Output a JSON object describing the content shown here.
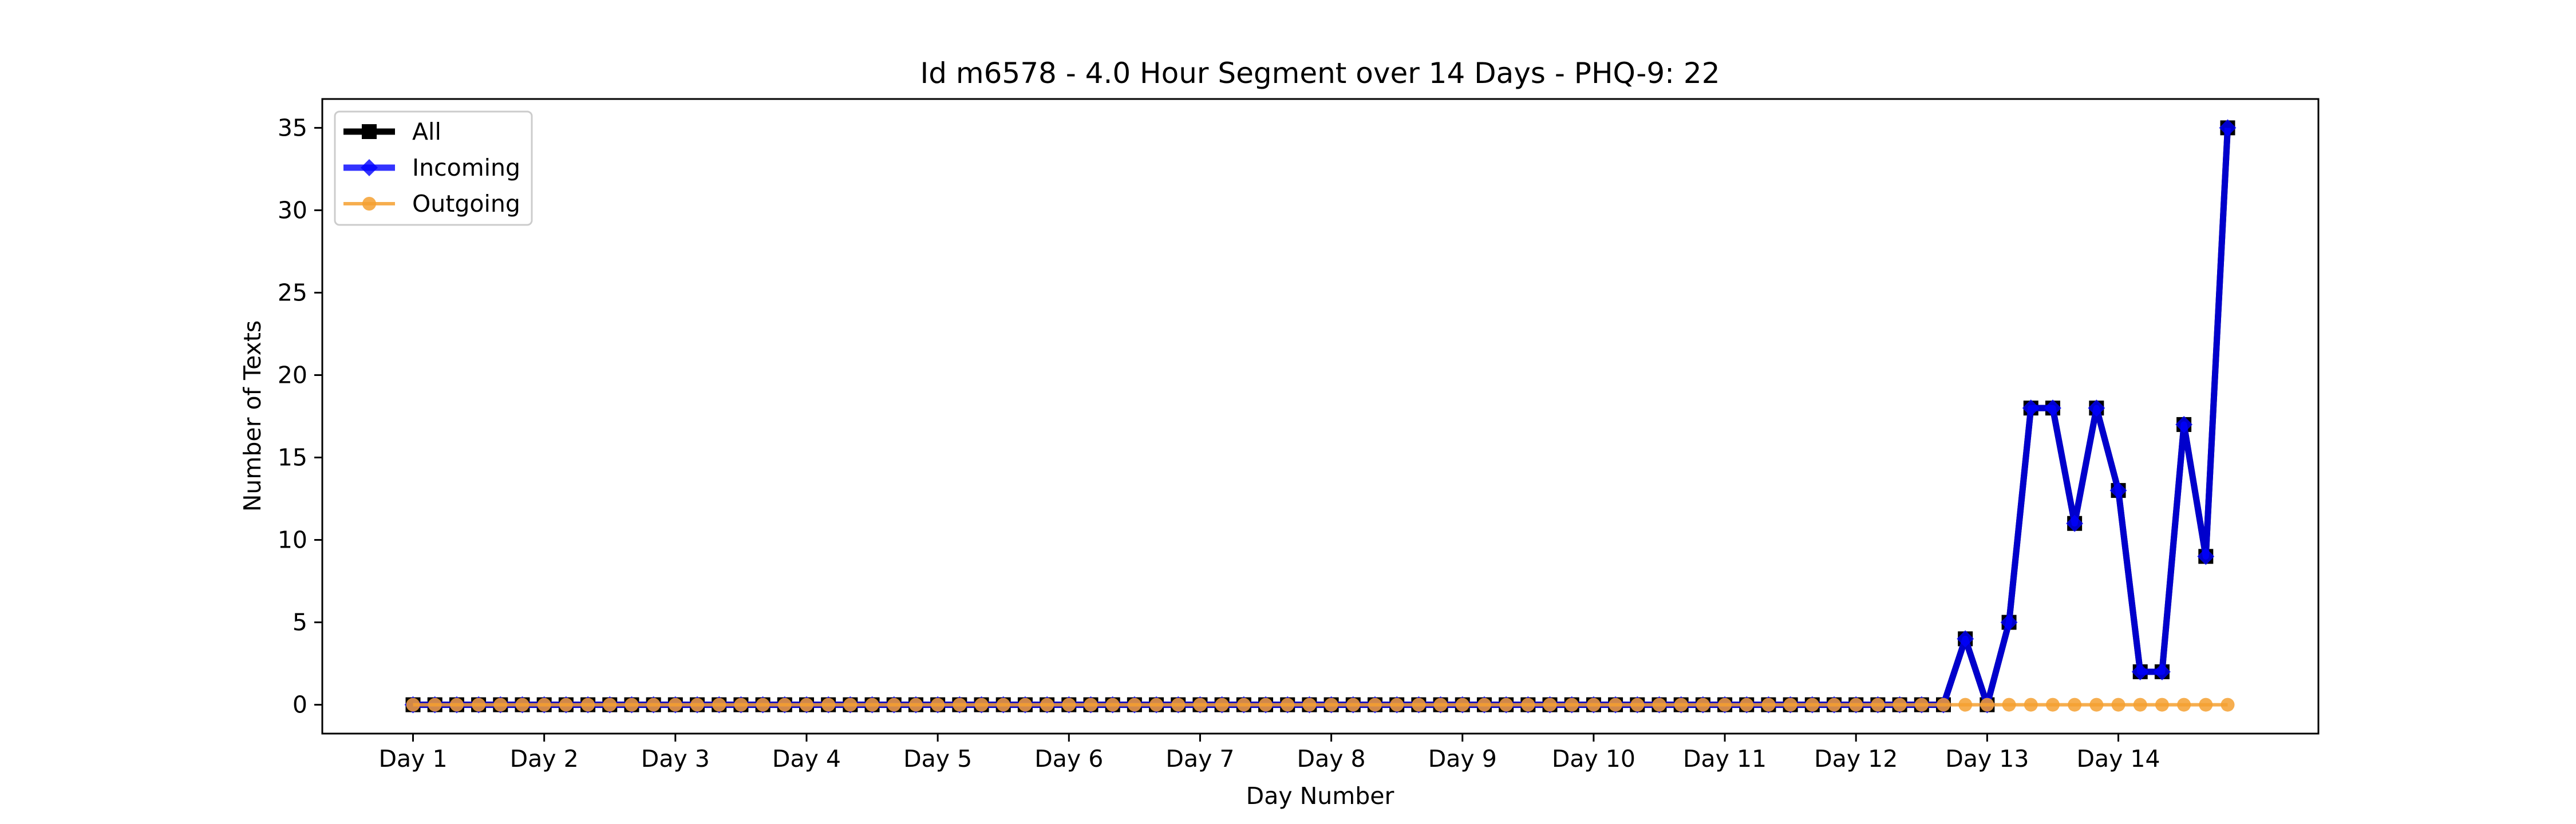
{
  "chart_data": {
    "type": "line",
    "title": "Id m6578 - 4.0 Hour Segment over 14 Days - PHQ-9: 22",
    "xlabel": "Day Number",
    "ylabel": "Number of Texts",
    "ylim": [
      -1.75,
      36.75
    ],
    "yticks": [
      0,
      5,
      10,
      15,
      20,
      25,
      30,
      35
    ],
    "xlim": [
      -4.15,
      87.15
    ],
    "xticks": [
      {
        "label": "Day 1",
        "x": 0
      },
      {
        "label": "Day 2",
        "x": 6
      },
      {
        "label": "Day 3",
        "x": 12
      },
      {
        "label": "Day 4",
        "x": 18
      },
      {
        "label": "Day 5",
        "x": 24
      },
      {
        "label": "Day 6",
        "x": 30
      },
      {
        "label": "Day 7",
        "x": 36
      },
      {
        "label": "Day 8",
        "x": 42
      },
      {
        "label": "Day 9",
        "x": 48
      },
      {
        "label": "Day 10",
        "x": 54
      },
      {
        "label": "Day 11",
        "x": 60
      },
      {
        "label": "Day 12",
        "x": 66
      },
      {
        "label": "Day 13",
        "x": 72
      },
      {
        "label": "Day 14",
        "x": 78
      }
    ],
    "grid": false,
    "legend_position": "top-left",
    "series": [
      {
        "name": "All",
        "color": "#000000",
        "marker": "square",
        "values": [
          0,
          0,
          0,
          0,
          0,
          0,
          0,
          0,
          0,
          0,
          0,
          0,
          0,
          0,
          0,
          0,
          0,
          0,
          0,
          0,
          0,
          0,
          0,
          0,
          0,
          0,
          0,
          0,
          0,
          0,
          0,
          0,
          0,
          0,
          0,
          0,
          0,
          0,
          0,
          0,
          0,
          0,
          0,
          0,
          0,
          0,
          0,
          0,
          0,
          0,
          0,
          0,
          0,
          0,
          0,
          0,
          0,
          0,
          0,
          0,
          0,
          0,
          0,
          0,
          0,
          0,
          0,
          0,
          0,
          0,
          0,
          4,
          0,
          5,
          18,
          18,
          11,
          18,
          13,
          2,
          2,
          17,
          9,
          35
        ]
      },
      {
        "name": "Incoming",
        "color": "#0000ff",
        "marker": "diamond",
        "values": [
          0,
          0,
          0,
          0,
          0,
          0,
          0,
          0,
          0,
          0,
          0,
          0,
          0,
          0,
          0,
          0,
          0,
          0,
          0,
          0,
          0,
          0,
          0,
          0,
          0,
          0,
          0,
          0,
          0,
          0,
          0,
          0,
          0,
          0,
          0,
          0,
          0,
          0,
          0,
          0,
          0,
          0,
          0,
          0,
          0,
          0,
          0,
          0,
          0,
          0,
          0,
          0,
          0,
          0,
          0,
          0,
          0,
          0,
          0,
          0,
          0,
          0,
          0,
          0,
          0,
          0,
          0,
          0,
          0,
          0,
          0,
          4,
          0,
          5,
          18,
          18,
          11,
          18,
          13,
          2,
          2,
          17,
          9,
          35
        ]
      },
      {
        "name": "Outgoing",
        "color": "#f5a030",
        "marker": "circle",
        "values": [
          0,
          0,
          0,
          0,
          0,
          0,
          0,
          0,
          0,
          0,
          0,
          0,
          0,
          0,
          0,
          0,
          0,
          0,
          0,
          0,
          0,
          0,
          0,
          0,
          0,
          0,
          0,
          0,
          0,
          0,
          0,
          0,
          0,
          0,
          0,
          0,
          0,
          0,
          0,
          0,
          0,
          0,
          0,
          0,
          0,
          0,
          0,
          0,
          0,
          0,
          0,
          0,
          0,
          0,
          0,
          0,
          0,
          0,
          0,
          0,
          0,
          0,
          0,
          0,
          0,
          0,
          0,
          0,
          0,
          0,
          0,
          0,
          0,
          0,
          0,
          0,
          0,
          0,
          0,
          0,
          0,
          0,
          0,
          0
        ]
      }
    ]
  }
}
